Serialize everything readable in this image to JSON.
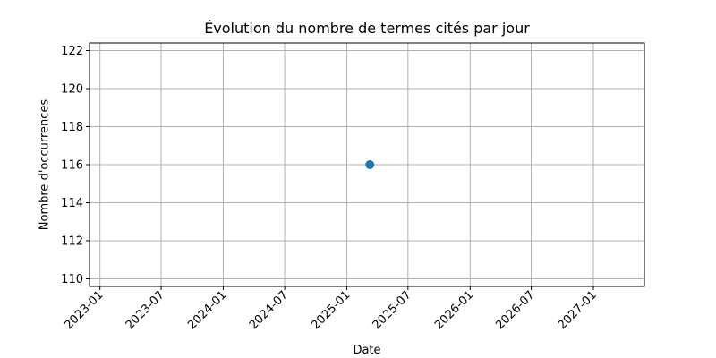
{
  "chart_data": {
    "type": "scatter",
    "title": "Évolution du nombre de termes cités par jour",
    "xlabel": "Date",
    "ylabel": "Nombre d'occurrences",
    "x_ticks": [
      "2023-01",
      "2023-07",
      "2024-01",
      "2024-07",
      "2025-01",
      "2025-07",
      "2026-01",
      "2026-07",
      "2027-01"
    ],
    "y_ticks": [
      110,
      112,
      114,
      116,
      118,
      120,
      122
    ],
    "xlim": [
      "2022-12-01",
      "2027-06-01"
    ],
    "ylim": [
      109.6,
      122.4
    ],
    "grid": true,
    "series": [
      {
        "color": "#1f77b4",
        "points": [
          {
            "x": "2025-03-10",
            "y": 116
          }
        ]
      }
    ]
  },
  "colors": {
    "grid": "#b0b0b0",
    "axis": "#000000",
    "point": "#1f77b4"
  }
}
